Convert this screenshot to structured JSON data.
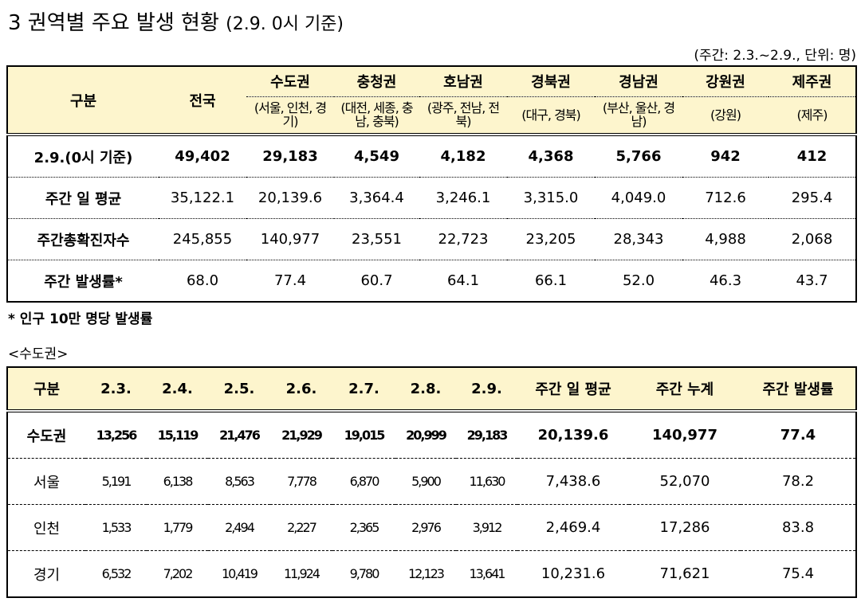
{
  "header": {
    "title_main": "3 권역별 주요 발생 현황",
    "title_sub": "(2.9. 0시 기준)",
    "unit_note": "(주간: 2.3.~2.9., 단위: 명)"
  },
  "table1": {
    "stub": "구분",
    "columns": [
      {
        "name": "전국"
      },
      {
        "name": "수도권",
        "sub": "(서울, 인천, 경기)"
      },
      {
        "name": "충청권",
        "sub": "(대전, 세종, 충남, 충북)"
      },
      {
        "name": "호남권",
        "sub": "(광주, 전남, 전북)"
      },
      {
        "name": "경북권",
        "sub": "(대구, 경북)"
      },
      {
        "name": "경남권",
        "sub": "(부산, 울산, 경남)"
      },
      {
        "name": "강원권",
        "sub": "(강원)"
      },
      {
        "name": "제주권",
        "sub": "(제주)"
      }
    ],
    "rows": [
      {
        "label": "2.9.(0시 기준)",
        "values": [
          "49,402",
          "29,183",
          "4,549",
          "4,182",
          "4,368",
          "5,766",
          "942",
          "412"
        ]
      },
      {
        "label": "주간 일 평균",
        "values": [
          "35,122.1",
          "20,139.6",
          "3,364.4",
          "3,246.1",
          "3,315.0",
          "4,049.0",
          "712.6",
          "295.4"
        ]
      },
      {
        "label": "주간총확진자수",
        "values": [
          "245,855",
          "140,977",
          "23,551",
          "22,723",
          "23,205",
          "28,343",
          "4,988",
          "2,068"
        ]
      },
      {
        "label": "주간 발생률*",
        "values": [
          "68.0",
          "77.4",
          "60.7",
          "64.1",
          "66.1",
          "52.0",
          "46.3",
          "43.7"
        ]
      }
    ]
  },
  "footnote": "* 인구 10만 명당 발생률",
  "section_label": "<수도권>",
  "table2": {
    "columns": [
      "구분",
      "2.3.",
      "2.4.",
      "2.5.",
      "2.6.",
      "2.7.",
      "2.8.",
      "2.9.",
      "주간 일 평균",
      "주간 누계",
      "주간 발생률"
    ],
    "rows": [
      [
        "수도권",
        "13,256",
        "15,119",
        "21,476",
        "21,929",
        "19,015",
        "20,999",
        "29,183",
        "20,139.6",
        "140,977",
        "77.4"
      ],
      [
        "서울",
        "5,191",
        "6,138",
        "8,563",
        "7,778",
        "6,870",
        "5,900",
        "11,630",
        "7,438.6",
        "52,070",
        "78.2"
      ],
      [
        "인천",
        "1,533",
        "1,779",
        "2,494",
        "2,227",
        "2,365",
        "2,976",
        "3,912",
        "2,469.4",
        "17,286",
        "83.8"
      ],
      [
        "경기",
        "6,532",
        "7,202",
        "10,419",
        "11,924",
        "9,780",
        "12,123",
        "13,641",
        "10,231.6",
        "71,621",
        "75.4"
      ]
    ]
  }
}
